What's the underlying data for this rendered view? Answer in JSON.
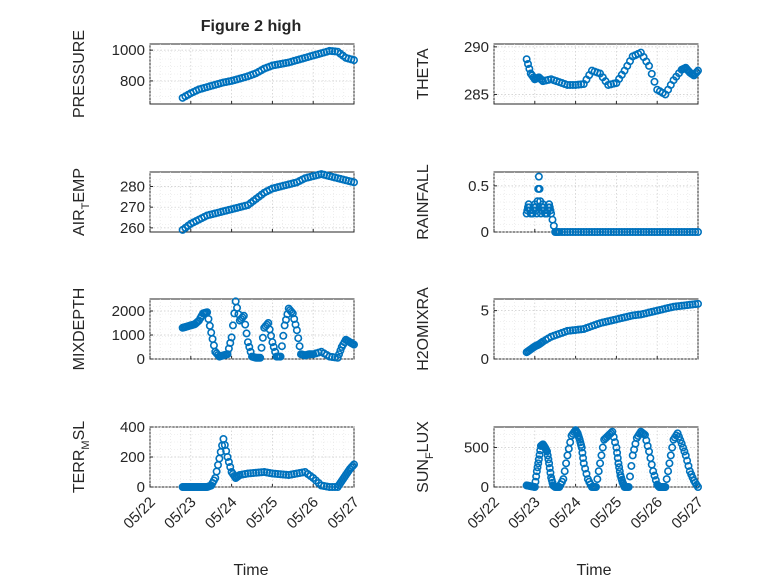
{
  "figure": {
    "title": "Figure 2 high"
  },
  "x_ticks": [
    "05/22",
    "05/23",
    "05/24",
    "05/25",
    "05/26",
    "05/27"
  ],
  "x_label": "Time",
  "colors": {
    "marker": "#0072bd",
    "axis": "#262626",
    "grid": "#c9c9c9"
  },
  "chart_data": [
    {
      "type": "scatter",
      "title": "Figure 2 high",
      "ylabel": "PRESSURE",
      "ylabel_sub": null,
      "xlim": [
        0,
        5
      ],
      "ylim": [
        650,
        1040
      ],
      "yticks": [
        800,
        1000
      ],
      "grid": true,
      "xticklabels_shown": false,
      "x": [
        0.8,
        1.0,
        1.2,
        1.4,
        1.6,
        1.8,
        2.0,
        2.2,
        2.4,
        2.6,
        2.8,
        3.0,
        3.2,
        3.4,
        3.6,
        3.8,
        4.0,
        4.2,
        4.4,
        4.6,
        4.8,
        5.0
      ],
      "y": [
        690,
        720,
        745,
        760,
        775,
        790,
        800,
        815,
        830,
        850,
        880,
        900,
        910,
        920,
        935,
        950,
        965,
        980,
        995,
        990,
        950,
        935
      ]
    },
    {
      "type": "scatter",
      "title": "",
      "ylabel": "THETA",
      "ylabel_sub": null,
      "xlim": [
        0,
        5
      ],
      "ylim": [
        284,
        290.3
      ],
      "yticks": [
        285,
        290
      ],
      "grid": true,
      "xticklabels_shown": false,
      "x": [
        0.8,
        0.9,
        1.0,
        1.1,
        1.2,
        1.4,
        1.6,
        1.8,
        2.0,
        2.2,
        2.4,
        2.6,
        2.8,
        3.0,
        3.2,
        3.4,
        3.6,
        3.8,
        4.0,
        4.2,
        4.4,
        4.6,
        4.7,
        4.8,
        4.9,
        5.0
      ],
      "y": [
        288.7,
        287.2,
        286.6,
        286.8,
        286.4,
        286.6,
        286.3,
        286.0,
        286.0,
        286.1,
        287.5,
        287.2,
        286.0,
        286.2,
        287.5,
        289.0,
        289.4,
        288.0,
        285.5,
        285.0,
        286.5,
        287.6,
        287.8,
        287.3,
        287.0,
        287.5
      ]
    },
    {
      "type": "scatter",
      "title": "",
      "ylabel": "AIR",
      "ylabel_sub": "T",
      "ylabel_suffix": "EMP",
      "xlim": [
        0,
        5
      ],
      "ylim": [
        258,
        287
      ],
      "yticks": [
        260,
        270,
        280
      ],
      "grid": true,
      "xticklabels_shown": false,
      "x": [
        0.8,
        1.0,
        1.2,
        1.4,
        1.6,
        1.8,
        2.0,
        2.2,
        2.4,
        2.6,
        2.8,
        3.0,
        3.2,
        3.4,
        3.6,
        3.8,
        4.0,
        4.2,
        4.4,
        4.6,
        4.8,
        5.0
      ],
      "y": [
        259,
        262,
        264,
        266,
        267,
        268,
        269,
        270,
        271,
        274,
        277,
        279,
        280,
        281,
        282,
        284,
        285,
        286,
        285,
        284,
        283,
        282
      ]
    },
    {
      "type": "scatter",
      "title": "",
      "ylabel": "RAINFALL",
      "ylabel_sub": null,
      "xlim": [
        0,
        5
      ],
      "ylim": [
        0,
        0.65
      ],
      "yticks": [
        0,
        0.5
      ],
      "grid": true,
      "xticklabels_shown": false,
      "x": [
        0.8,
        0.85,
        0.9,
        0.95,
        1.0,
        1.05,
        1.1,
        1.15,
        1.2,
        1.25,
        1.3,
        1.35,
        1.4,
        1.5,
        1.6,
        1.8,
        2.0,
        2.2,
        2.4,
        2.6,
        2.8,
        3.0,
        3.2,
        3.4,
        3.6,
        3.8,
        4.0,
        4.2,
        4.4,
        4.6,
        4.8,
        5.0
      ],
      "y": [
        0.2,
        0.3,
        0.2,
        0.2,
        0.3,
        0.2,
        0.6,
        0.2,
        0.3,
        0.2,
        0.2,
        0.3,
        0.2,
        0,
        0,
        0,
        0,
        0,
        0,
        0,
        0,
        0,
        0,
        0,
        0,
        0,
        0,
        0,
        0,
        0,
        0,
        0
      ]
    },
    {
      "type": "scatter",
      "title": "",
      "ylabel": "MIXDEPTH",
      "ylabel_sub": null,
      "xlim": [
        0,
        5
      ],
      "ylim": [
        0,
        2500
      ],
      "yticks": [
        0,
        1000,
        2000
      ],
      "grid": true,
      "xticklabels_shown": false,
      "x": [
        0.8,
        0.9,
        1.0,
        1.1,
        1.2,
        1.3,
        1.4,
        1.5,
        1.6,
        1.7,
        1.8,
        1.9,
        2.0,
        2.1,
        2.2,
        2.3,
        2.4,
        2.5,
        2.6,
        2.7,
        2.8,
        2.9,
        3.0,
        3.1,
        3.2,
        3.3,
        3.4,
        3.5,
        3.6,
        3.7,
        3.8,
        3.9,
        4.0,
        4.2,
        4.4,
        4.6,
        4.7,
        4.8,
        4.9,
        5.0
      ],
      "y": [
        1300,
        1350,
        1400,
        1450,
        1600,
        1900,
        1950,
        1100,
        300,
        100,
        150,
        200,
        900,
        2400,
        1600,
        1800,
        700,
        100,
        50,
        50,
        1300,
        1500,
        700,
        100,
        100,
        1400,
        2100,
        1900,
        1200,
        200,
        150,
        200,
        200,
        300,
        100,
        50,
        500,
        800,
        700,
        600
      ]
    },
    {
      "type": "scatter",
      "title": "",
      "ylabel": "H2OMIXRA",
      "ylabel_sub": null,
      "xlim": [
        0,
        5
      ],
      "ylim": [
        0,
        6.2
      ],
      "yticks": [
        0,
        5
      ],
      "grid": true,
      "xticklabels_shown": false,
      "x": [
        0.8,
        0.9,
        1.0,
        1.1,
        1.2,
        1.4,
        1.6,
        1.8,
        2.0,
        2.2,
        2.4,
        2.6,
        2.8,
        3.0,
        3.2,
        3.4,
        3.6,
        3.8,
        4.0,
        4.2,
        4.4,
        4.6,
        4.8,
        5.0
      ],
      "y": [
        0.7,
        1.0,
        1.3,
        1.5,
        1.8,
        2.3,
        2.6,
        2.9,
        3.0,
        3.1,
        3.4,
        3.7,
        3.9,
        4.1,
        4.3,
        4.5,
        4.6,
        4.8,
        5.0,
        5.2,
        5.4,
        5.5,
        5.6,
        5.7
      ]
    },
    {
      "type": "scatter",
      "title": "",
      "ylabel": "TERR",
      "ylabel_sub": "M",
      "ylabel_suffix": "SL",
      "xlim": [
        0,
        5
      ],
      "ylim": [
        0,
        400
      ],
      "yticks": [
        0,
        200,
        400
      ],
      "grid": true,
      "xticklabels_shown": true,
      "x": [
        0.8,
        0.9,
        1.0,
        1.1,
        1.2,
        1.3,
        1.4,
        1.5,
        1.6,
        1.7,
        1.8,
        1.9,
        2.0,
        2.1,
        2.2,
        2.4,
        2.6,
        2.8,
        3.0,
        3.2,
        3.4,
        3.6,
        3.8,
        4.0,
        4.2,
        4.4,
        4.6,
        4.7,
        4.8,
        4.9,
        5.0
      ],
      "y": [
        0,
        0,
        0,
        0,
        0,
        0,
        0,
        10,
        60,
        190,
        320,
        200,
        100,
        60,
        80,
        90,
        95,
        100,
        90,
        85,
        80,
        90,
        100,
        60,
        10,
        0,
        0,
        40,
        80,
        120,
        150
      ]
    },
    {
      "type": "scatter",
      "title": "",
      "ylabel": "SUN",
      "ylabel_sub": "F",
      "ylabel_suffix": "LUX",
      "xlim": [
        0,
        5
      ],
      "ylim": [
        0,
        760
      ],
      "yticks": [
        0,
        500
      ],
      "grid": true,
      "xticklabels_shown": true,
      "x": [
        0.8,
        0.9,
        1.0,
        1.05,
        1.1,
        1.15,
        1.2,
        1.25,
        1.3,
        1.35,
        1.4,
        1.45,
        1.5,
        1.6,
        1.7,
        1.8,
        1.9,
        2.0,
        2.05,
        2.1,
        2.15,
        2.2,
        2.3,
        2.4,
        2.5,
        2.6,
        2.7,
        2.8,
        2.9,
        3.0,
        3.05,
        3.1,
        3.15,
        3.2,
        3.3,
        3.4,
        3.5,
        3.6,
        3.7,
        3.8,
        3.9,
        4.0,
        4.05,
        4.1,
        4.15,
        4.2,
        4.3,
        4.4,
        4.5,
        4.6,
        4.7,
        4.8,
        4.9,
        5.0
      ],
      "y": [
        20,
        10,
        0,
        200,
        350,
        520,
        540,
        500,
        450,
        300,
        120,
        20,
        0,
        0,
        100,
        400,
        650,
        720,
        680,
        600,
        500,
        300,
        100,
        0,
        0,
        300,
        600,
        650,
        700,
        500,
        300,
        150,
        60,
        0,
        0,
        400,
        620,
        700,
        660,
        450,
        200,
        30,
        0,
        0,
        0,
        0,
        300,
        600,
        680,
        550,
        400,
        200,
        80,
        0
      ]
    }
  ]
}
